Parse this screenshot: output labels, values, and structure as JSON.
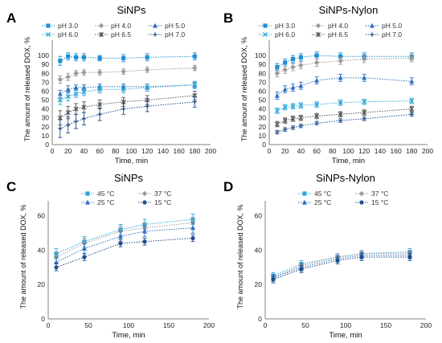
{
  "chart_data": [
    {
      "panel_letter": "A",
      "type": "line",
      "title": "SiNPs",
      "xlabel": "Time, min",
      "ylabel": "The amount of released DOX, %",
      "xlim": [
        0,
        200
      ],
      "ylim": [
        0,
        110
      ],
      "xticks": [
        0,
        20,
        40,
        60,
        80,
        100,
        120,
        140,
        160,
        180,
        200
      ],
      "yticks": [
        0,
        10,
        20,
        30,
        40,
        50,
        60,
        70,
        80,
        90,
        100
      ],
      "grid": false,
      "legend": "top",
      "x": [
        10,
        20,
        30,
        40,
        60,
        90,
        120,
        180
      ],
      "series": [
        {
          "name": "pH 3.0",
          "color": "#1f8fd6",
          "marker": "square",
          "values": [
            94,
            99,
            98,
            98,
            97,
            97,
            98,
            99
          ],
          "error": [
            5,
            4,
            4,
            4,
            3,
            4,
            4,
            4
          ]
        },
        {
          "name": "pH 4.0",
          "color": "#9a9a9a",
          "marker": "diamond",
          "values": [
            73,
            76,
            80,
            81,
            81,
            82,
            84,
            86
          ],
          "error": [
            4,
            4,
            3,
            3,
            3,
            3,
            3,
            3
          ]
        },
        {
          "name": "pH 5.0",
          "color": "#2f6fc0",
          "marker": "triangle",
          "values": [
            57,
            62,
            64,
            64,
            65,
            65,
            65,
            67
          ],
          "error": [
            4,
            4,
            3,
            3,
            3,
            3,
            3,
            3
          ]
        },
        {
          "name": "pH 6.0",
          "color": "#2aa5d9",
          "marker": "x",
          "values": [
            50,
            54,
            57,
            59,
            62,
            62,
            64,
            67
          ],
          "error": [
            5,
            5,
            4,
            4,
            4,
            4,
            4,
            4
          ]
        },
        {
          "name": "pH 6.5",
          "color": "#555555",
          "marker": "star",
          "values": [
            30,
            36,
            40,
            42,
            45,
            48,
            50,
            55
          ],
          "error": [
            8,
            7,
            6,
            6,
            5,
            5,
            5,
            5
          ]
        },
        {
          "name": "pH 7.0",
          "color": "#1f4e8c",
          "marker": "plus",
          "values": [
            18,
            22,
            26,
            29,
            34,
            40,
            43,
            48
          ],
          "error": [
            10,
            9,
            8,
            7,
            7,
            6,
            6,
            6
          ]
        }
      ]
    },
    {
      "panel_letter": "B",
      "type": "line",
      "title": "SiNPs-Nylon",
      "xlabel": "Time, min",
      "ylabel": "The amount of released DOX, %",
      "xlim": [
        0,
        200
      ],
      "ylim": [
        0,
        110
      ],
      "xticks": [
        0,
        20,
        40,
        60,
        80,
        100,
        120,
        140,
        160,
        180,
        200
      ],
      "yticks": [
        0,
        10,
        20,
        30,
        40,
        50,
        60,
        70,
        80,
        90,
        100
      ],
      "grid": false,
      "legend": "top",
      "x": [
        10,
        20,
        30,
        40,
        60,
        90,
        120,
        180
      ],
      "series": [
        {
          "name": "pH 3.0",
          "color": "#1f8fd6",
          "marker": "square",
          "values": [
            87,
            92,
            96,
            98,
            100,
            99,
            99,
            99
          ],
          "error": [
            4,
            4,
            4,
            4,
            4,
            4,
            4,
            4
          ]
        },
        {
          "name": "pH 4.0",
          "color": "#9a9a9a",
          "marker": "diamond",
          "values": [
            80,
            84,
            87,
            89,
            92,
            94,
            96,
            97
          ],
          "error": [
            4,
            4,
            4,
            4,
            4,
            4,
            4,
            4
          ]
        },
        {
          "name": "pH 5.0",
          "color": "#2f6fc0",
          "marker": "triangle",
          "values": [
            55,
            62,
            64,
            66,
            72,
            75,
            75,
            71
          ],
          "error": [
            4,
            4,
            4,
            4,
            4,
            4,
            4,
            4
          ]
        },
        {
          "name": "pH 6.0",
          "color": "#2aa5d9",
          "marker": "x",
          "values": [
            38,
            42,
            43,
            44,
            45,
            47,
            48,
            49
          ],
          "error": [
            3,
            3,
            3,
            3,
            3,
            3,
            3,
            3
          ]
        },
        {
          "name": "pH 6.5",
          "color": "#555555",
          "marker": "star",
          "values": [
            23,
            27,
            29,
            30,
            32,
            34,
            36,
            40
          ],
          "error": [
            3,
            3,
            3,
            3,
            3,
            3,
            3,
            3
          ]
        },
        {
          "name": "pH 7.0",
          "color": "#1f4e8c",
          "marker": "plus",
          "values": [
            14,
            17,
            19,
            21,
            24,
            27,
            29,
            34
          ],
          "error": [
            2,
            2,
            2,
            2,
            2,
            2,
            2,
            2
          ]
        }
      ]
    },
    {
      "panel_letter": "C",
      "type": "line",
      "title": "SiNPs",
      "xlabel": "Time, min",
      "ylabel": "The amount of released DOX, %",
      "xlim": [
        0,
        200
      ],
      "ylim": [
        0,
        65
      ],
      "xticks": [
        0,
        50,
        100,
        150,
        200
      ],
      "yticks": [
        0,
        20,
        40,
        60
      ],
      "grid": false,
      "legend": "top",
      "x": [
        10,
        45,
        90,
        120,
        180
      ],
      "series": [
        {
          "name": "45 °C",
          "color": "#2aa5d9",
          "marker": "square",
          "values": [
            38,
            45,
            52,
            55,
            58
          ],
          "error": [
            3,
            3,
            3,
            3,
            3
          ]
        },
        {
          "name": "37 °C",
          "color": "#9a9a9a",
          "marker": "diamond",
          "values": [
            36,
            44,
            51,
            53,
            56
          ],
          "error": [
            3,
            3,
            3,
            3,
            3
          ]
        },
        {
          "name": "25 °C",
          "color": "#2f6fc0",
          "marker": "triangle",
          "values": [
            33,
            41,
            48,
            51,
            53
          ],
          "error": [
            3,
            3,
            3,
            3,
            3
          ]
        },
        {
          "name": "15 °C",
          "color": "#1f4e8c",
          "marker": "circle",
          "values": [
            30,
            36,
            44,
            45,
            47
          ],
          "error": [
            2,
            2,
            2,
            2,
            2
          ]
        }
      ]
    },
    {
      "panel_letter": "D",
      "type": "line",
      "title": "SiNPs-Nylon",
      "xlabel": "Time, min",
      "ylabel": "The amount of released DOX, %",
      "xlim": [
        0,
        200
      ],
      "ylim": [
        0,
        65
      ],
      "xticks": [
        0,
        50,
        100,
        150,
        200
      ],
      "yticks": [
        0,
        20,
        40,
        60
      ],
      "grid": false,
      "legend": "top",
      "x": [
        10,
        45,
        90,
        120,
        180
      ],
      "series": [
        {
          "name": "45 °C",
          "color": "#2aa5d9",
          "marker": "square",
          "values": [
            25,
            32,
            36,
            38,
            39
          ],
          "error": [
            2,
            2,
            2,
            2,
            2
          ]
        },
        {
          "name": "37 °C",
          "color": "#9a9a9a",
          "marker": "diamond",
          "values": [
            24,
            31,
            36,
            38,
            38
          ],
          "error": [
            2,
            2,
            2,
            2,
            2
          ]
        },
        {
          "name": "25 °C",
          "color": "#2f6fc0",
          "marker": "triangle",
          "values": [
            24,
            30,
            35,
            37,
            37
          ],
          "error": [
            2,
            2,
            2,
            2,
            2
          ]
        },
        {
          "name": "15 °C",
          "color": "#1f4e8c",
          "marker": "circle",
          "values": [
            23,
            29,
            34,
            36,
            36
          ],
          "error": [
            2,
            2,
            2,
            2,
            2
          ]
        }
      ]
    }
  ]
}
